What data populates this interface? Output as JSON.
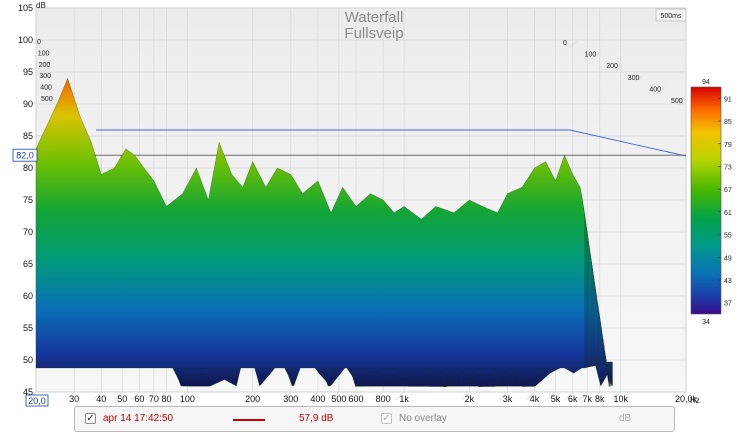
{
  "chart_data": {
    "type": "waterfall-3d",
    "title": "Waterfall",
    "subtitle": "Fullsveip",
    "ylabel": "dB",
    "time_label": "500ms",
    "xlabel_unit": "Hz",
    "ylim": [
      45,
      105
    ],
    "xlim": [
      20,
      20000
    ],
    "x_scale": "log",
    "y_ticks": [
      45,
      50,
      55,
      60,
      65,
      70,
      75,
      80,
      85,
      90,
      95,
      100,
      105
    ],
    "x_tick_labels": [
      {
        "value": 20,
        "label": "20,0"
      },
      {
        "value": 30,
        "label": "30"
      },
      {
        "value": 40,
        "label": "40"
      },
      {
        "value": 50,
        "label": "50"
      },
      {
        "value": 60,
        "label": "60"
      },
      {
        "value": 70,
        "label": "70"
      },
      {
        "value": 80,
        "label": "80"
      },
      {
        "value": 100,
        "label": "100"
      },
      {
        "value": 200,
        "label": "200"
      },
      {
        "value": 300,
        "label": "300"
      },
      {
        "value": 400,
        "label": "400"
      },
      {
        "value": 500,
        "label": "500"
      },
      {
        "value": 600,
        "label": "600"
      },
      {
        "value": 800,
        "label": "800"
      },
      {
        "value": 1000,
        "label": "1k"
      },
      {
        "value": 2000,
        "label": "2k"
      },
      {
        "value": 3000,
        "label": "3k"
      },
      {
        "value": 4000,
        "label": "4k"
      },
      {
        "value": 5000,
        "label": "5k"
      },
      {
        "value": 6000,
        "label": "6k"
      },
      {
        "value": 7000,
        "label": "7k"
      },
      {
        "value": 8000,
        "label": "8k"
      },
      {
        "value": 10000,
        "label": "10k"
      },
      {
        "value": 20000,
        "label": "20,0k"
      }
    ],
    "time_ticks": [
      "0",
      "100",
      "200",
      "300",
      "400",
      "500"
    ],
    "x_start_marker": "20,0",
    "cursor_level": {
      "value": 82.0,
      "label": "82,0"
    },
    "reference_level": 86,
    "colorbar": {
      "max_label": "94",
      "min_label": "34",
      "ticks": [
        91,
        85,
        79,
        73,
        67,
        61,
        55,
        49,
        43,
        37
      ],
      "range": [
        34,
        94
      ],
      "colors": [
        "#d40000",
        "#ff6a00",
        "#f2c300",
        "#b9d400",
        "#49b800",
        "#00a14a",
        "#00998a",
        "#0a72b5",
        "#1a3ea8",
        "#3a0a8a"
      ]
    },
    "front_slice_envelope": {
      "x": [
        20,
        22,
        25,
        28,
        32,
        36,
        40,
        46,
        52,
        57,
        63,
        70,
        80,
        95,
        110,
        125,
        140,
        160,
        180,
        200,
        230,
        260,
        300,
        340,
        400,
        460,
        520,
        600,
        700,
        800,
        900,
        1000,
        1200,
        1400,
        1700,
        2000,
        2300,
        2700,
        3000,
        3500,
        4000,
        4500,
        5000,
        5500,
        6000,
        6500,
        6800
      ],
      "y": [
        83,
        86,
        90,
        94,
        88,
        84,
        79,
        80,
        83,
        82,
        80,
        78,
        74,
        76,
        80,
        75,
        84,
        79,
        77,
        81,
        77,
        80,
        79,
        76,
        78,
        73,
        77,
        74,
        76,
        75,
        73,
        74,
        72,
        74,
        73,
        75,
        74,
        73,
        76,
        77,
        80,
        81,
        78,
        82,
        79,
        77,
        73
      ]
    }
  },
  "legend": {
    "checked_mark": "✓",
    "measurement_name": "apr 14 17:42:50",
    "measurement_color": "#c40000",
    "level_text": "57,9 dB",
    "overlay_label": "No overlay",
    "overlay_unit": "dB"
  }
}
